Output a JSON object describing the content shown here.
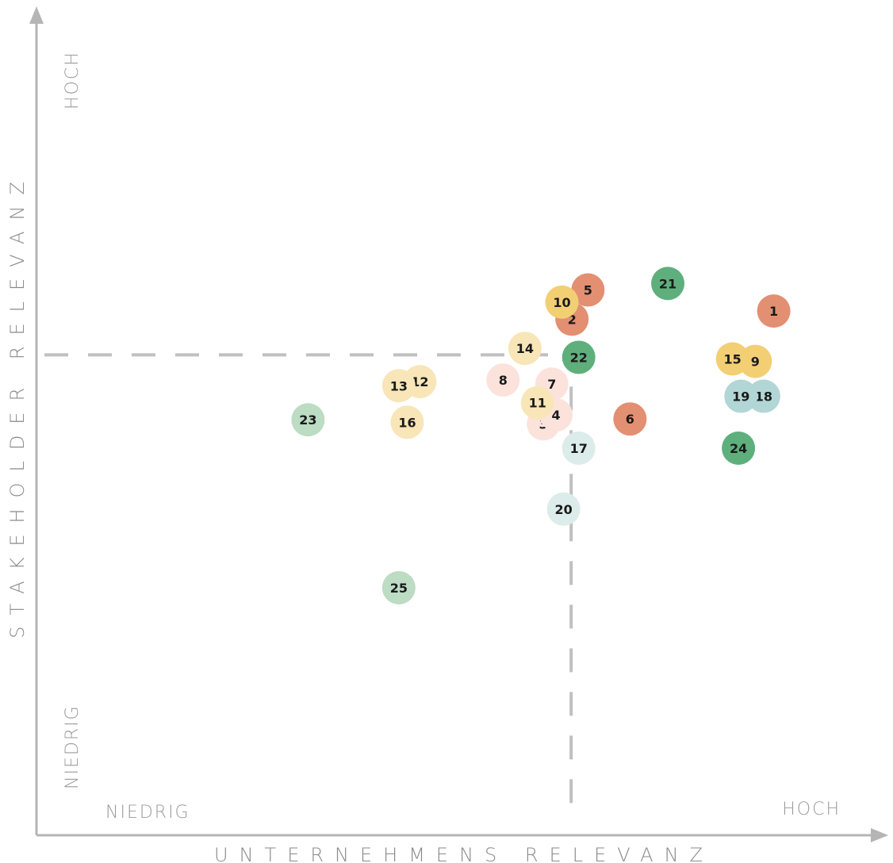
{
  "chart_data": {
    "type": "scatter",
    "xlabel": "UNTERNEHMENS RELEVANZ",
    "ylabel": "STAKEHOLDER RELEVANZ",
    "x_low_label": "NIEDRIG",
    "x_high_label": "HOCH",
    "y_low_label": "NIEDRIG",
    "y_high_label": "HOCH",
    "xlim": [
      0,
      10
    ],
    "ylim": [
      0,
      10
    ],
    "threshold": {
      "x": 6.36,
      "y": 5.92
    },
    "grid": false,
    "legend": "none",
    "colors": {
      "dark_orange": "#e38f72",
      "light_orange": "#fbe3dc",
      "dark_yellow": "#f2cf73",
      "light_yellow": "#f8e6b8",
      "dark_green": "#5faf7d",
      "light_green": "#bcdcc3",
      "teal": "#b2d6d6",
      "light_teal": "#dcecea"
    },
    "points": [
      {
        "label": "1",
        "x": 8.77,
        "y": 6.46,
        "color": "dark_orange"
      },
      {
        "label": "2",
        "x": 6.37,
        "y": 6.36,
        "color": "dark_orange"
      },
      {
        "label": "3",
        "x": 6.03,
        "y": 5.07,
        "color": "light_orange"
      },
      {
        "label": "4",
        "x": 6.18,
        "y": 5.18,
        "color": "light_orange"
      },
      {
        "label": "5",
        "x": 6.56,
        "y": 6.72,
        "color": "dark_orange"
      },
      {
        "label": "6",
        "x": 7.06,
        "y": 5.13,
        "color": "dark_orange"
      },
      {
        "label": "7",
        "x": 6.13,
        "y": 5.56,
        "color": "light_orange"
      },
      {
        "label": "8",
        "x": 5.55,
        "y": 5.61,
        "color": "light_orange"
      },
      {
        "label": "9",
        "x": 8.55,
        "y": 5.84,
        "color": "dark_yellow"
      },
      {
        "label": "10",
        "x": 6.25,
        "y": 6.57,
        "color": "dark_yellow"
      },
      {
        "label": "11",
        "x": 5.96,
        "y": 5.33,
        "color": "light_yellow"
      },
      {
        "label": "12",
        "x": 4.56,
        "y": 5.59,
        "color": "light_yellow"
      },
      {
        "label": "13",
        "x": 4.31,
        "y": 5.54,
        "color": "light_yellow"
      },
      {
        "label": "14",
        "x": 5.81,
        "y": 6.0,
        "color": "light_yellow"
      },
      {
        "label": "15",
        "x": 8.28,
        "y": 5.87,
        "color": "dark_yellow"
      },
      {
        "label": "16",
        "x": 4.41,
        "y": 5.09,
        "color": "light_yellow"
      },
      {
        "label": "17",
        "x": 6.45,
        "y": 4.77,
        "color": "light_teal"
      },
      {
        "label": "18",
        "x": 8.65,
        "y": 5.41,
        "color": "teal"
      },
      {
        "label": "19",
        "x": 8.38,
        "y": 5.41,
        "color": "teal"
      },
      {
        "label": "20",
        "x": 6.27,
        "y": 4.02,
        "color": "light_teal"
      },
      {
        "label": "21",
        "x": 7.51,
        "y": 6.8,
        "color": "dark_green"
      },
      {
        "label": "22",
        "x": 6.45,
        "y": 5.89,
        "color": "dark_green"
      },
      {
        "label": "23",
        "x": 3.23,
        "y": 5.12,
        "color": "light_green"
      },
      {
        "label": "24",
        "x": 8.35,
        "y": 4.77,
        "color": "dark_green"
      },
      {
        "label": "25",
        "x": 4.31,
        "y": 3.05,
        "color": "light_green"
      }
    ]
  }
}
